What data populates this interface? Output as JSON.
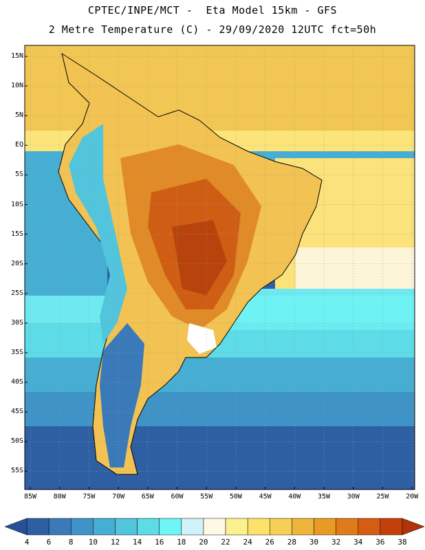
{
  "header": {
    "line1": "CPTEC/INPE/MCT -  Eta Model 15km - GFS",
    "line2": "2 Metre Temperature (C) - 29/09/2020 12UTC fct=50h"
  },
  "axes": {
    "lat_labels": [
      "15N",
      "10N",
      "5N",
      "EQ",
      "5S",
      "10S",
      "15S",
      "20S",
      "25S",
      "30S",
      "35S",
      "40S",
      "45S",
      "50S",
      "55S"
    ],
    "lon_labels": [
      "85W",
      "80W",
      "75W",
      "70W",
      "65W",
      "60W",
      "55W",
      "50W",
      "45W",
      "40W",
      "35W",
      "30W",
      "25W",
      "20W"
    ]
  },
  "colorbar": {
    "labels": [
      "4",
      "6",
      "8",
      "10",
      "12",
      "14",
      "16",
      "18",
      "20",
      "22",
      "24",
      "26",
      "28",
      "30",
      "32",
      "34",
      "36",
      "38"
    ],
    "colors": [
      "#2f5fa3",
      "#3a7ab8",
      "#3f93c6",
      "#47aed3",
      "#52c4dc",
      "#5ddbe6",
      "#6ff5f5",
      "#cff3f8",
      "#fff8e6",
      "#fdf18e",
      "#fde16b",
      "#f6cf56",
      "#eeb53a",
      "#e89a22",
      "#e07a1a",
      "#d55c10",
      "#c3400a"
    ],
    "low_color": "#2a4f9a",
    "high_color": "#b0330a"
  }
}
